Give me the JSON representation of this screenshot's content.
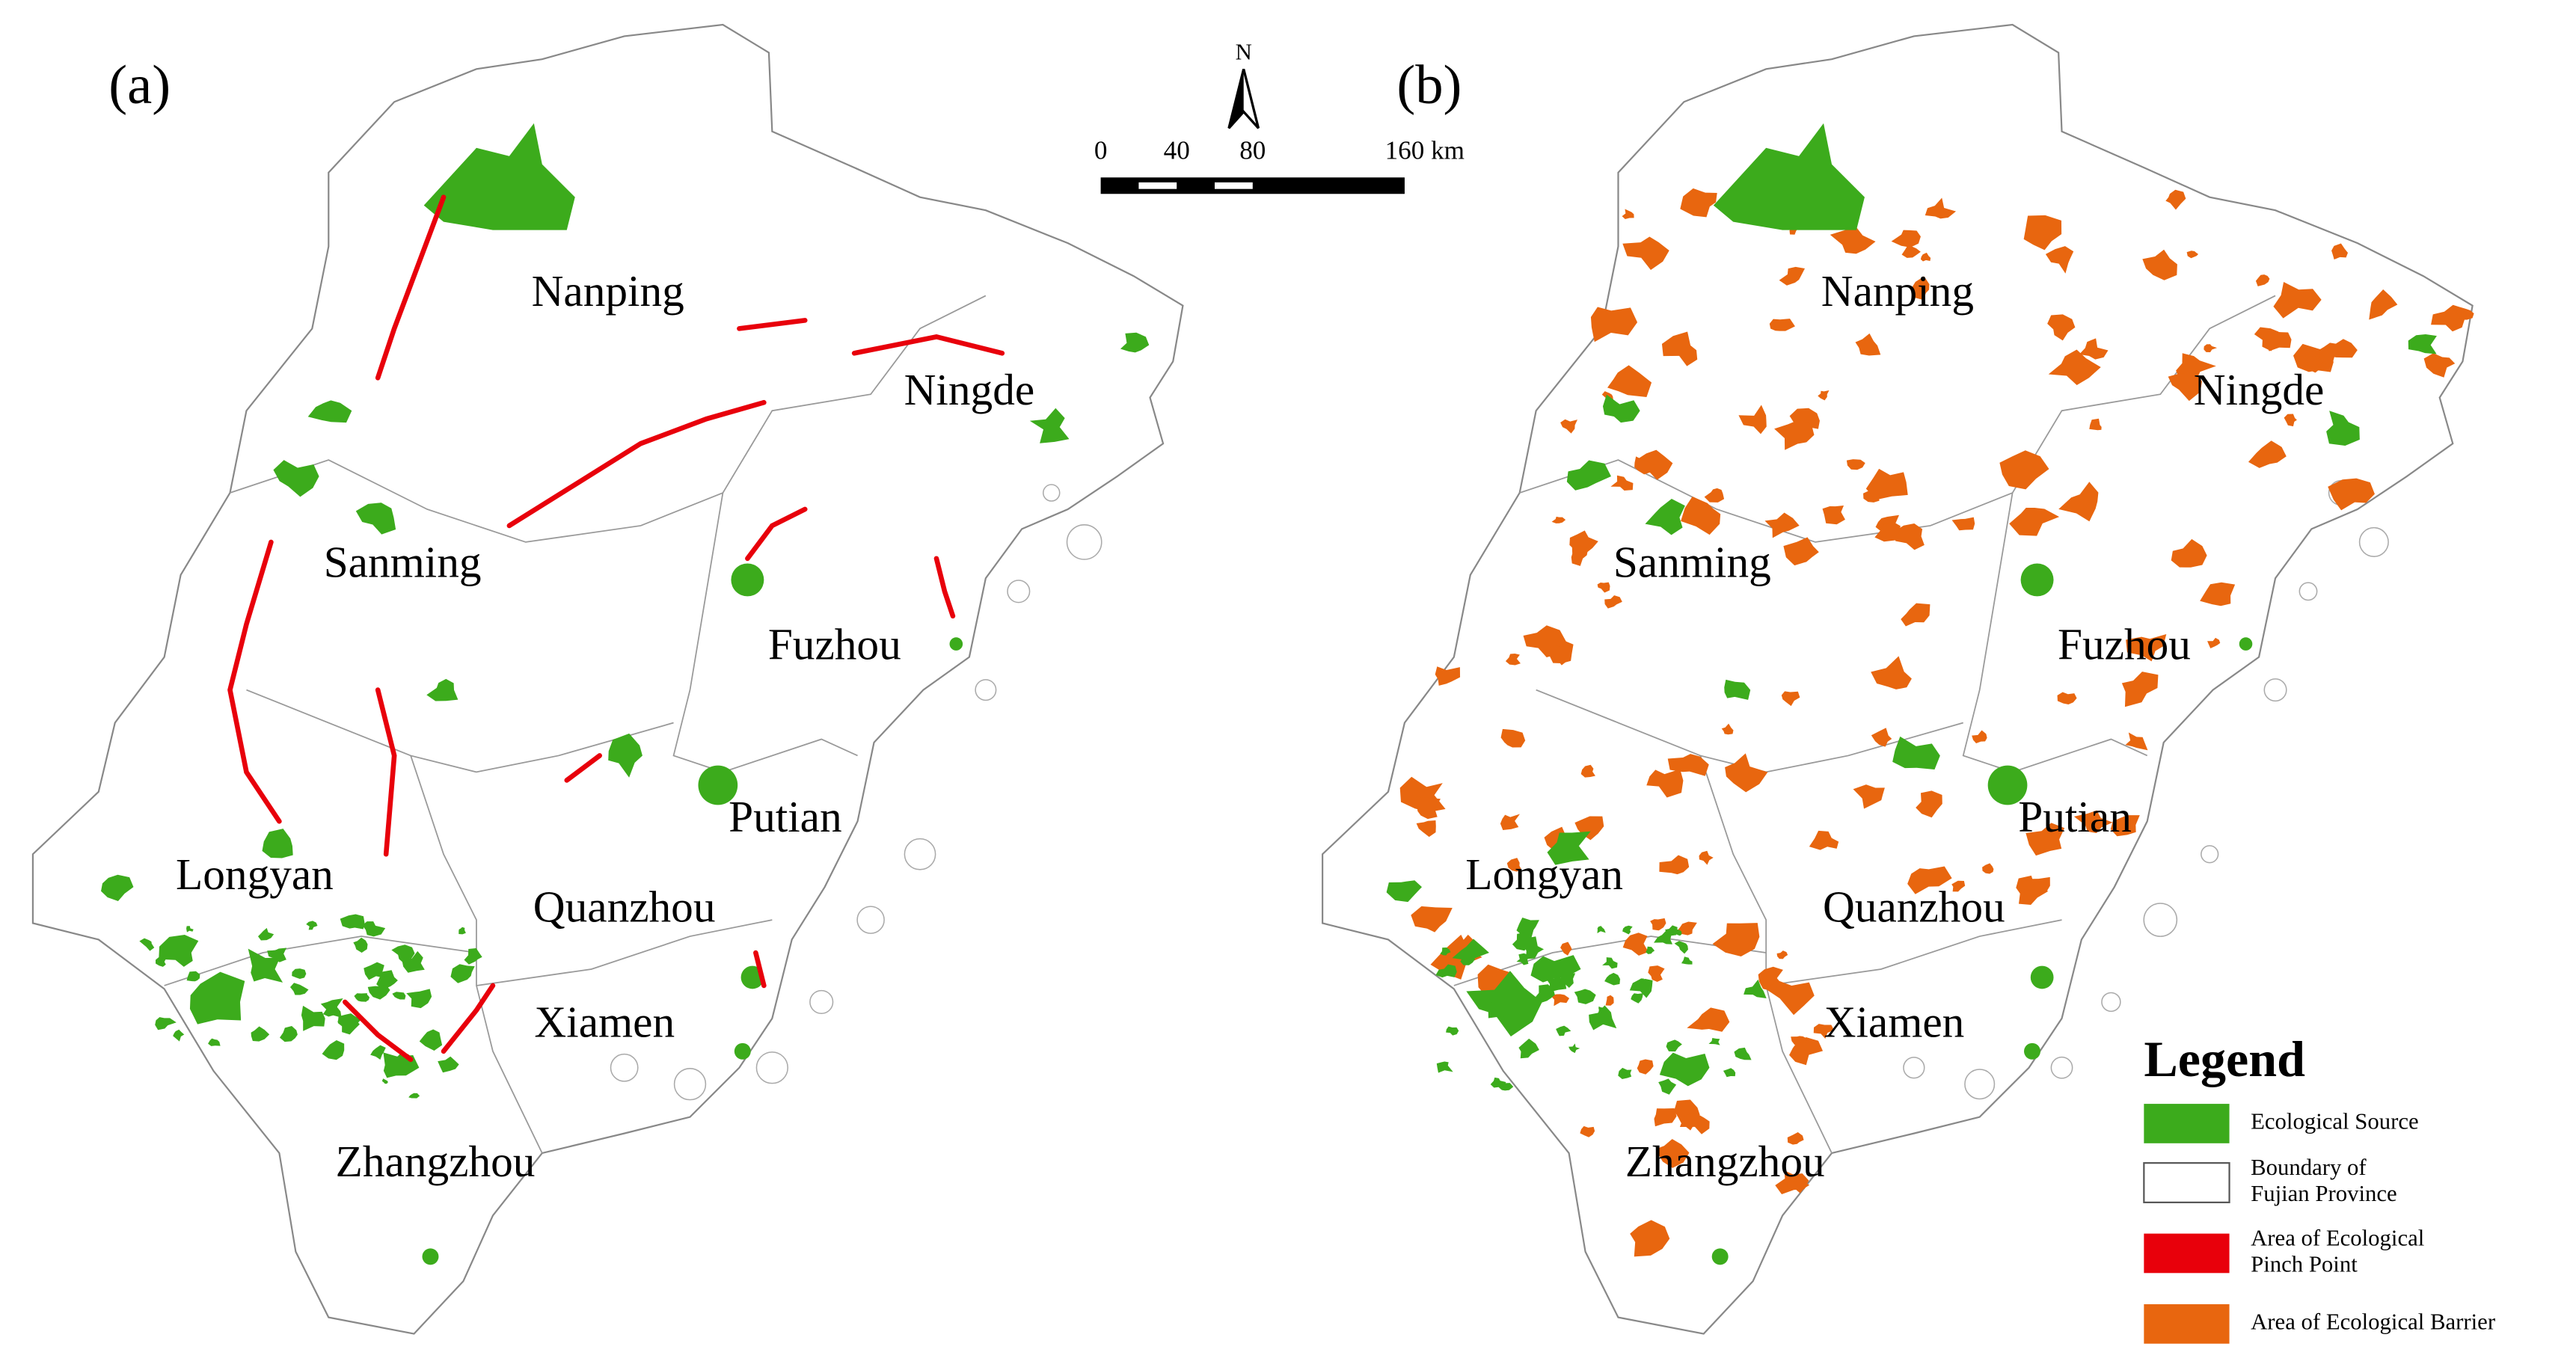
{
  "panels": [
    {
      "label": "(a)"
    },
    {
      "label": "(b)"
    }
  ],
  "cities": [
    "Nanping",
    "Ningde",
    "Sanming",
    "Fuzhou",
    "Putian",
    "Longyan",
    "Quanzhou",
    "Xiamen",
    "Zhangzhou"
  ],
  "scale_bar": {
    "north": "N",
    "ticks": [
      0,
      40,
      80,
      160
    ],
    "unit": "km"
  },
  "legend": {
    "title": "Legend",
    "items": [
      {
        "label": [
          "Ecological Source"
        ],
        "color": "#3cab1c"
      },
      {
        "label": [
          "Boundary of",
          "Fujian Province"
        ],
        "color": "#ffffff"
      },
      {
        "label": [
          "Area of Ecological",
          "Pinch Point"
        ],
        "color": "#e8000b"
      },
      {
        "label": [
          "Area of Ecological Barrier"
        ],
        "color": "#e8660f"
      }
    ]
  }
}
